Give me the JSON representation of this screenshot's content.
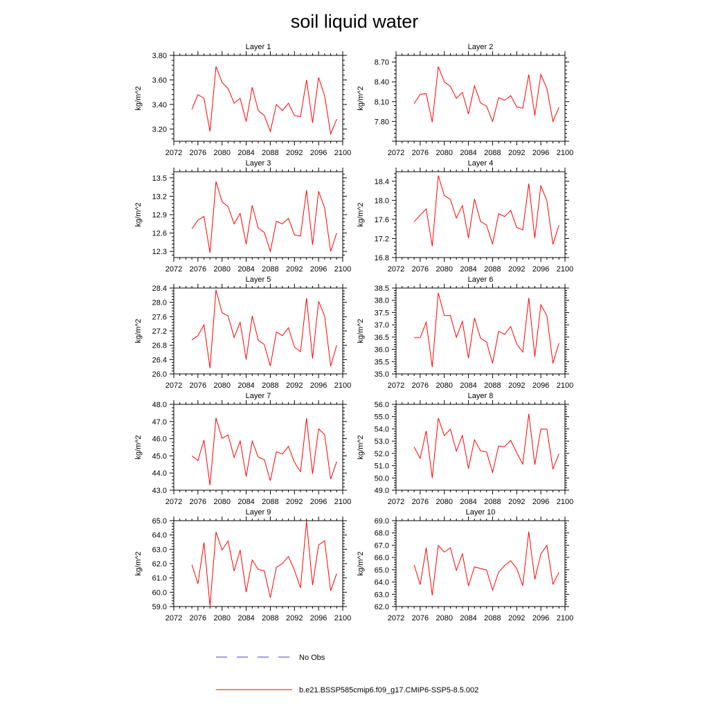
{
  "title": "soil liquid water",
  "ylabel": "kg/m^2",
  "colors": {
    "model": "#ff0000",
    "obs": "#3f3fbf",
    "axis": "#000000"
  },
  "legend": {
    "obs_label": "No Obs",
    "model_label": "b.e21.BSSP585cmip6.f09_g17.CMIP6-SSP5-8.5.002"
  },
  "chart_data": [
    {
      "type": "line",
      "title": "Layer 1",
      "ylabel": "kg/m^2",
      "xlim": [
        2072,
        2100
      ],
      "xticks": [
        2072,
        2076,
        2080,
        2084,
        2088,
        2092,
        2096,
        2100
      ],
      "ylim": [
        3.1,
        3.8
      ],
      "yticks": [
        "3.20",
        "3.40",
        "3.60",
        "3.80"
      ],
      "series": [
        {
          "name": "b.e21.BSSP585cmip6.f09_g17.CMIP6-SSP5-8.5.002",
          "x": [
            2075,
            2076,
            2077,
            2078,
            2079,
            2080,
            2081,
            2082,
            2083,
            2084,
            2085,
            2086,
            2087,
            2088,
            2089,
            2090,
            2091,
            2092,
            2093,
            2094,
            2095,
            2096,
            2097,
            2098,
            2099
          ],
          "y": [
            3.36,
            3.48,
            3.45,
            3.18,
            3.71,
            3.58,
            3.53,
            3.41,
            3.45,
            3.26,
            3.54,
            3.35,
            3.31,
            3.18,
            3.4,
            3.35,
            3.41,
            3.31,
            3.3,
            3.6,
            3.25,
            3.62,
            3.47,
            3.16,
            3.28
          ]
        }
      ]
    },
    {
      "type": "line",
      "title": "Layer 2",
      "ylabel": "kg/m^2",
      "xlim": [
        2072,
        2100
      ],
      "xticks": [
        2072,
        2076,
        2080,
        2084,
        2088,
        2092,
        2096,
        2100
      ],
      "ylim": [
        7.5,
        8.8
      ],
      "yticks": [
        "7.80",
        "8.10",
        "8.40",
        "8.70"
      ],
      "series": [
        {
          "name": "b.e21.BSSP585cmip6.f09_g17.CMIP6-SSP5-8.5.002",
          "x": [
            2075,
            2076,
            2077,
            2078,
            2079,
            2080,
            2081,
            2082,
            2083,
            2084,
            2085,
            2086,
            2087,
            2088,
            2089,
            2090,
            2091,
            2092,
            2093,
            2094,
            2095,
            2096,
            2097,
            2098,
            2099
          ],
          "y": [
            8.07,
            8.21,
            8.22,
            7.79,
            8.63,
            8.4,
            8.33,
            8.15,
            8.24,
            7.91,
            8.34,
            8.08,
            8.03,
            7.8,
            8.16,
            8.12,
            8.19,
            8.02,
            8.0,
            8.51,
            7.89,
            8.51,
            8.3,
            7.8,
            8.01
          ]
        }
      ]
    },
    {
      "type": "line",
      "title": "Layer 3",
      "ylabel": "kg/m^2",
      "xlim": [
        2072,
        2100
      ],
      "xticks": [
        2072,
        2076,
        2080,
        2084,
        2088,
        2092,
        2096,
        2100
      ],
      "ylim": [
        12.2,
        13.6
      ],
      "yticks": [
        "12.3",
        "12.6",
        "12.9",
        "13.2",
        "13.5"
      ],
      "series": [
        {
          "name": "b.e21.BSSP585cmip6.f09_g17.CMIP6-SSP5-8.5.002",
          "x": [
            2075,
            2076,
            2077,
            2078,
            2079,
            2080,
            2081,
            2082,
            2083,
            2084,
            2085,
            2086,
            2087,
            2088,
            2089,
            2090,
            2091,
            2092,
            2093,
            2094,
            2095,
            2096,
            2097,
            2098,
            2099
          ],
          "y": [
            12.67,
            12.81,
            12.87,
            12.28,
            13.44,
            13.11,
            13.03,
            12.75,
            12.92,
            12.42,
            13.05,
            12.68,
            12.61,
            12.3,
            12.79,
            12.75,
            12.84,
            12.57,
            12.55,
            13.3,
            12.41,
            13.28,
            13.01,
            12.3,
            12.6
          ]
        }
      ]
    },
    {
      "type": "line",
      "title": "Layer 4",
      "ylabel": "kg/m^2",
      "xlim": [
        2072,
        2100
      ],
      "xticks": [
        2072,
        2076,
        2080,
        2084,
        2088,
        2092,
        2096,
        2100
      ],
      "ylim": [
        16.8,
        18.6
      ],
      "yticks": [
        "16.8",
        "17.2",
        "17.6",
        "18.0",
        "18.4"
      ],
      "series": [
        {
          "name": "b.e21.BSSP585cmip6.f09_g17.CMIP6-SSP5-8.5.002",
          "x": [
            2075,
            2076,
            2077,
            2078,
            2079,
            2080,
            2081,
            2082,
            2083,
            2084,
            2085,
            2086,
            2087,
            2088,
            2089,
            2090,
            2091,
            2092,
            2093,
            2094,
            2095,
            2096,
            2097,
            2098,
            2099
          ],
          "y": [
            17.55,
            17.69,
            17.82,
            17.04,
            18.52,
            18.1,
            18.02,
            17.63,
            17.89,
            17.21,
            18.03,
            17.56,
            17.48,
            17.08,
            17.72,
            17.66,
            17.79,
            17.43,
            17.38,
            18.35,
            17.21,
            18.31,
            17.99,
            17.08,
            17.48
          ]
        }
      ]
    },
    {
      "type": "line",
      "title": "Layer 5",
      "ylabel": "kg/m^2",
      "xlim": [
        2072,
        2100
      ],
      "xticks": [
        2072,
        2076,
        2080,
        2084,
        2088,
        2092,
        2096,
        2100
      ],
      "ylim": [
        26.0,
        28.4
      ],
      "yticks": [
        "26.0",
        "26.4",
        "26.8",
        "27.2",
        "27.6",
        "28.0",
        "28.4"
      ],
      "series": [
        {
          "name": "b.e21.BSSP585cmip6.f09_g17.CMIP6-SSP5-8.5.002",
          "x": [
            2075,
            2076,
            2077,
            2078,
            2079,
            2080,
            2081,
            2082,
            2083,
            2084,
            2085,
            2086,
            2087,
            2088,
            2089,
            2090,
            2091,
            2092,
            2093,
            2094,
            2095,
            2096,
            2097,
            2098,
            2099
          ],
          "y": [
            26.95,
            27.07,
            27.37,
            26.16,
            28.35,
            27.71,
            27.62,
            27.02,
            27.44,
            26.4,
            27.62,
            26.94,
            26.82,
            26.22,
            27.17,
            27.07,
            27.29,
            26.75,
            26.62,
            28.12,
            26.43,
            28.03,
            27.62,
            26.22,
            26.8
          ]
        }
      ]
    },
    {
      "type": "line",
      "title": "Layer 6",
      "ylabel": "kg/m^2",
      "xlim": [
        2072,
        2100
      ],
      "xticks": [
        2072,
        2076,
        2080,
        2084,
        2088,
        2092,
        2096,
        2100
      ],
      "ylim": [
        35.0,
        38.5
      ],
      "yticks": [
        "35.0",
        "35.5",
        "36.0",
        "36.5",
        "37.0",
        "37.5",
        "38.0",
        "38.5"
      ],
      "series": [
        {
          "name": "b.e21.BSSP585cmip6.f09_g17.CMIP6-SSP5-8.5.002",
          "x": [
            2075,
            2076,
            2077,
            2078,
            2079,
            2080,
            2081,
            2082,
            2083,
            2084,
            2085,
            2086,
            2087,
            2088,
            2089,
            2090,
            2091,
            2092,
            2093,
            2094,
            2095,
            2096,
            2097,
            2098,
            2099
          ],
          "y": [
            36.47,
            36.48,
            37.11,
            35.28,
            38.3,
            37.38,
            37.38,
            36.49,
            37.14,
            35.64,
            37.28,
            36.46,
            36.3,
            35.43,
            36.74,
            36.61,
            36.93,
            36.22,
            35.89,
            38.1,
            35.7,
            37.82,
            37.37,
            35.43,
            36.26
          ]
        }
      ]
    },
    {
      "type": "line",
      "title": "Layer 7",
      "ylabel": "kg/m^2",
      "xlim": [
        2072,
        2100
      ],
      "xticks": [
        2072,
        2076,
        2080,
        2084,
        2088,
        2092,
        2096,
        2100
      ],
      "ylim": [
        43.0,
        48.0
      ],
      "yticks": [
        "43.0",
        "44.0",
        "45.0",
        "46.0",
        "47.0",
        "48.0"
      ],
      "series": [
        {
          "name": "b.e21.BSSP585cmip6.f09_g17.CMIP6-SSP5-8.5.002",
          "x": [
            2075,
            2076,
            2077,
            2078,
            2079,
            2080,
            2081,
            2082,
            2083,
            2084,
            2085,
            2086,
            2087,
            2088,
            2089,
            2090,
            2091,
            2092,
            2093,
            2094,
            2095,
            2096,
            2097,
            2098,
            2099
          ],
          "y": [
            45.0,
            44.73,
            45.92,
            43.29,
            47.21,
            46.02,
            46.22,
            44.91,
            45.86,
            43.8,
            45.86,
            44.93,
            44.78,
            43.55,
            45.24,
            45.11,
            45.55,
            44.62,
            44.08,
            47.19,
            43.95,
            46.57,
            46.24,
            43.65,
            44.66
          ]
        }
      ]
    },
    {
      "type": "line",
      "title": "Layer 8",
      "ylabel": "kg/m^2",
      "xlim": [
        2072,
        2100
      ],
      "xticks": [
        2072,
        2076,
        2080,
        2084,
        2088,
        2092,
        2096,
        2100
      ],
      "ylim": [
        49.0,
        56.0
      ],
      "yticks": [
        "49.0",
        "50.0",
        "51.0",
        "52.0",
        "53.0",
        "54.0",
        "55.0",
        "56.0"
      ],
      "series": [
        {
          "name": "b.e21.BSSP585cmip6.f09_g17.CMIP6-SSP5-8.5.002",
          "x": [
            2075,
            2076,
            2077,
            2078,
            2079,
            2080,
            2081,
            2082,
            2083,
            2084,
            2085,
            2086,
            2087,
            2088,
            2089,
            2090,
            2091,
            2092,
            2093,
            2094,
            2095,
            2096,
            2097,
            2098,
            2099
          ],
          "y": [
            52.52,
            51.6,
            53.84,
            50.0,
            54.88,
            53.45,
            53.98,
            52.18,
            53.47,
            50.76,
            53.11,
            52.22,
            52.12,
            50.45,
            52.6,
            52.56,
            53.07,
            52.05,
            51.12,
            55.23,
            51.08,
            53.99,
            53.98,
            50.74,
            51.97
          ]
        }
      ]
    },
    {
      "type": "line",
      "title": "Layer 9",
      "ylabel": "kg/m^2",
      "xlim": [
        2072,
        2100
      ],
      "xticks": [
        2072,
        2076,
        2080,
        2084,
        2088,
        2092,
        2096,
        2100
      ],
      "ylim": [
        59.0,
        65.0
      ],
      "yticks": [
        "59.0",
        "60.0",
        "61.0",
        "62.0",
        "63.0",
        "64.0",
        "65.0"
      ],
      "series": [
        {
          "name": "b.e21.BSSP585cmip6.f09_g17.CMIP6-SSP5-8.5.002",
          "x": [
            2075,
            2076,
            2077,
            2078,
            2079,
            2080,
            2081,
            2082,
            2083,
            2084,
            2085,
            2086,
            2087,
            2088,
            2089,
            2090,
            2091,
            2092,
            2093,
            2094,
            2095,
            2096,
            2097,
            2098,
            2099
          ],
          "y": [
            61.92,
            60.59,
            63.48,
            59.05,
            64.21,
            62.95,
            63.58,
            61.48,
            62.95,
            60.01,
            62.25,
            61.59,
            61.5,
            59.62,
            61.73,
            62.01,
            62.5,
            61.53,
            60.3,
            64.96,
            60.5,
            63.3,
            63.6,
            60.11,
            61.3
          ]
        }
      ]
    },
    {
      "type": "line",
      "title": "Layer 10",
      "ylabel": "kg/m^2",
      "xlim": [
        2072,
        2100
      ],
      "xticks": [
        2072,
        2076,
        2080,
        2084,
        2088,
        2092,
        2096,
        2100
      ],
      "ylim": [
        62.0,
        69.0
      ],
      "yticks": [
        "62.0",
        "63.0",
        "64.0",
        "65.0",
        "66.0",
        "67.0",
        "68.0",
        "69.0"
      ],
      "series": [
        {
          "name": "b.e21.BSSP585cmip6.f09_g17.CMIP6-SSP5-8.5.002",
          "x": [
            2075,
            2076,
            2077,
            2078,
            2079,
            2080,
            2081,
            2082,
            2083,
            2084,
            2085,
            2086,
            2087,
            2088,
            2089,
            2090,
            2091,
            2092,
            2093,
            2094,
            2095,
            2096,
            2097,
            2098,
            2099
          ],
          "y": [
            65.4,
            63.78,
            66.8,
            62.92,
            66.98,
            66.44,
            66.79,
            64.95,
            66.3,
            63.68,
            65.23,
            65.1,
            64.98,
            63.34,
            64.79,
            65.35,
            65.73,
            65.1,
            63.7,
            68.11,
            64.22,
            66.28,
            66.99,
            63.83,
            64.78
          ]
        }
      ]
    }
  ]
}
